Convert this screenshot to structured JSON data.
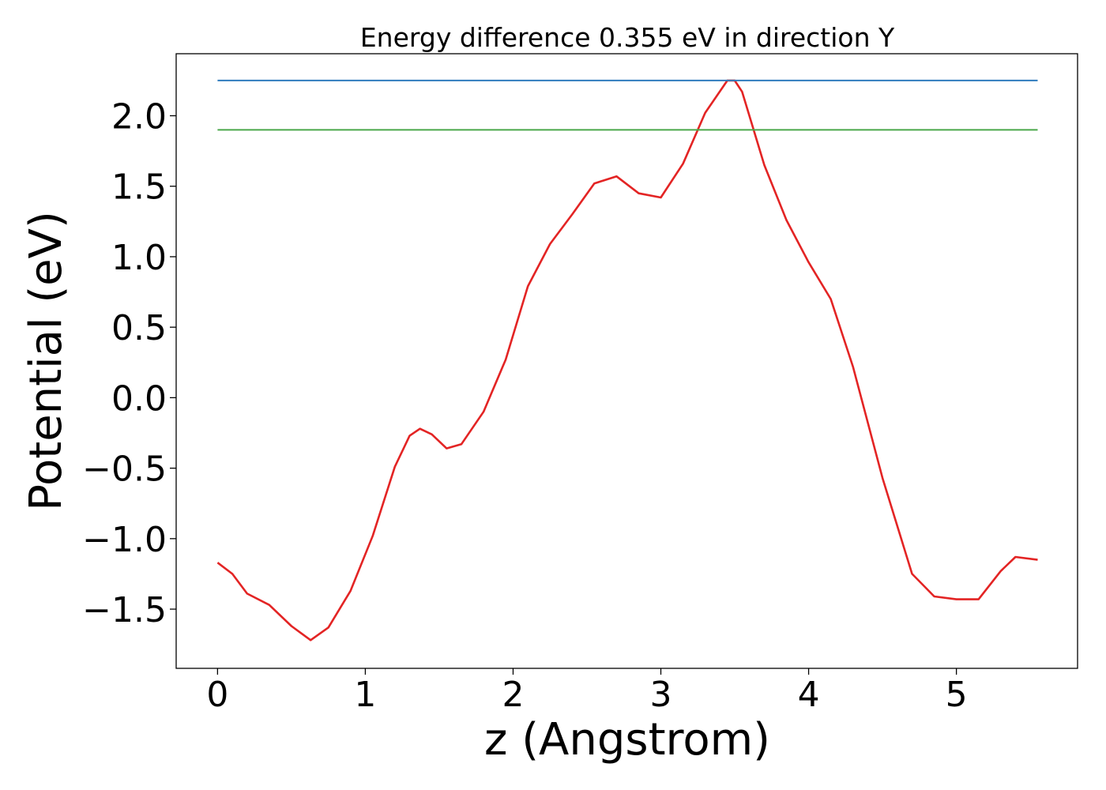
{
  "chart_data": {
    "type": "line",
    "title": "Energy difference 0.355 eV in direction Y",
    "xlabel": "z (Angstrom)",
    "ylabel": "Potential (eV)",
    "xlim": [
      -0.28,
      5.82
    ],
    "ylim": [
      -1.92,
      2.44
    ],
    "xticks": [
      0,
      1,
      2,
      3,
      4,
      5
    ],
    "xtick_labels": [
      "0",
      "1",
      "2",
      "3",
      "4",
      "5"
    ],
    "yticks": [
      -1.5,
      -1.0,
      -0.5,
      0.0,
      0.5,
      1.0,
      1.5,
      2.0
    ],
    "ytick_labels": [
      "−1.5",
      "−1.0",
      "−0.5",
      "0.0",
      "0.5",
      "1.0",
      "1.5",
      "2.0"
    ],
    "grid": false,
    "colors": {
      "potential": "#e32424",
      "max": "#2f7bbd",
      "min": "#4aa84a"
    },
    "series": [
      {
        "key": "potential",
        "x": [
          0.0,
          0.1,
          0.2,
          0.35,
          0.5,
          0.63,
          0.75,
          0.9,
          1.05,
          1.2,
          1.3,
          1.37,
          1.45,
          1.55,
          1.65,
          1.8,
          1.95,
          2.1,
          2.25,
          2.4,
          2.55,
          2.7,
          2.85,
          3.0,
          3.15,
          3.3,
          3.45,
          3.5,
          3.55,
          3.7,
          3.85,
          4.0,
          4.15,
          4.3,
          4.5,
          4.7,
          4.85,
          5.0,
          5.15,
          5.3,
          5.4,
          5.55
        ],
        "y": [
          -1.17,
          -1.25,
          -1.39,
          -1.47,
          -1.62,
          -1.72,
          -1.63,
          -1.37,
          -0.98,
          -0.49,
          -0.27,
          -0.22,
          -0.26,
          -0.36,
          -0.33,
          -0.1,
          0.27,
          0.79,
          1.09,
          1.3,
          1.52,
          1.57,
          1.45,
          1.42,
          1.66,
          2.02,
          2.25,
          2.25,
          2.17,
          1.65,
          1.26,
          0.96,
          0.7,
          0.22,
          -0.57,
          -1.25,
          -1.41,
          -1.43,
          -1.43,
          -1.23,
          -1.13,
          -1.15
        ]
      },
      {
        "key": "max",
        "x": [
          0.0,
          5.55
        ],
        "y": [
          2.25,
          2.25
        ]
      },
      {
        "key": "min",
        "x": [
          0.0,
          5.55
        ],
        "y": [
          1.9,
          1.9
        ]
      }
    ]
  }
}
